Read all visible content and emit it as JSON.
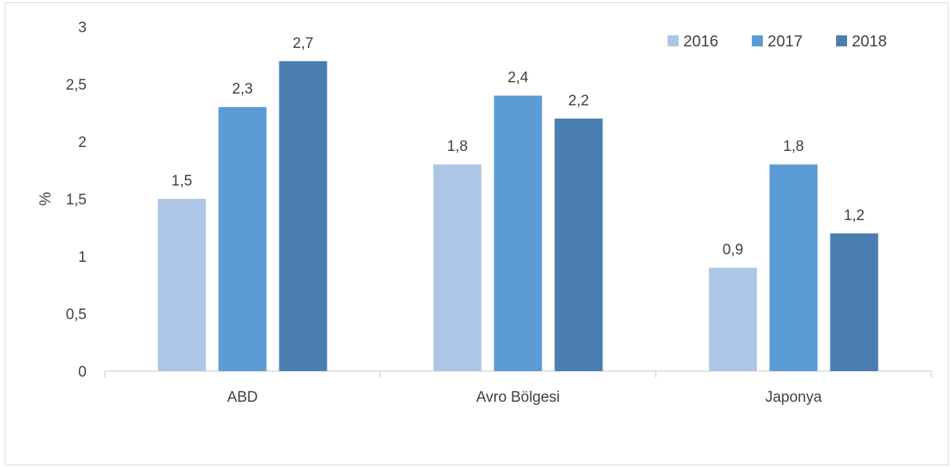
{
  "chart_data": {
    "type": "bar",
    "title": "",
    "xlabel": "",
    "ylabel": "%",
    "ylim": [
      0,
      3
    ],
    "yticks": [
      "0",
      "0,5",
      "1",
      "1,5",
      "2",
      "2,5",
      "3"
    ],
    "categories": [
      "ABD",
      "Avro Bölgesi",
      "Japonya"
    ],
    "series": [
      {
        "name": "2016",
        "color": "#adc6e5",
        "values": [
          1.5,
          1.8,
          0.9
        ],
        "labels": [
          "1,5",
          "1,8",
          "0,9"
        ]
      },
      {
        "name": "2017",
        "color": "#5b9bd5",
        "values": [
          2.3,
          2.4,
          1.8
        ],
        "labels": [
          "2,3",
          "2,4",
          "1,8"
        ]
      },
      {
        "name": "2018",
        "color": "#4a7eb0",
        "values": [
          2.7,
          2.2,
          1.2
        ],
        "labels": [
          "2,7",
          "2,2",
          "1,2"
        ]
      }
    ],
    "legend": "top-right",
    "grid": false
  }
}
